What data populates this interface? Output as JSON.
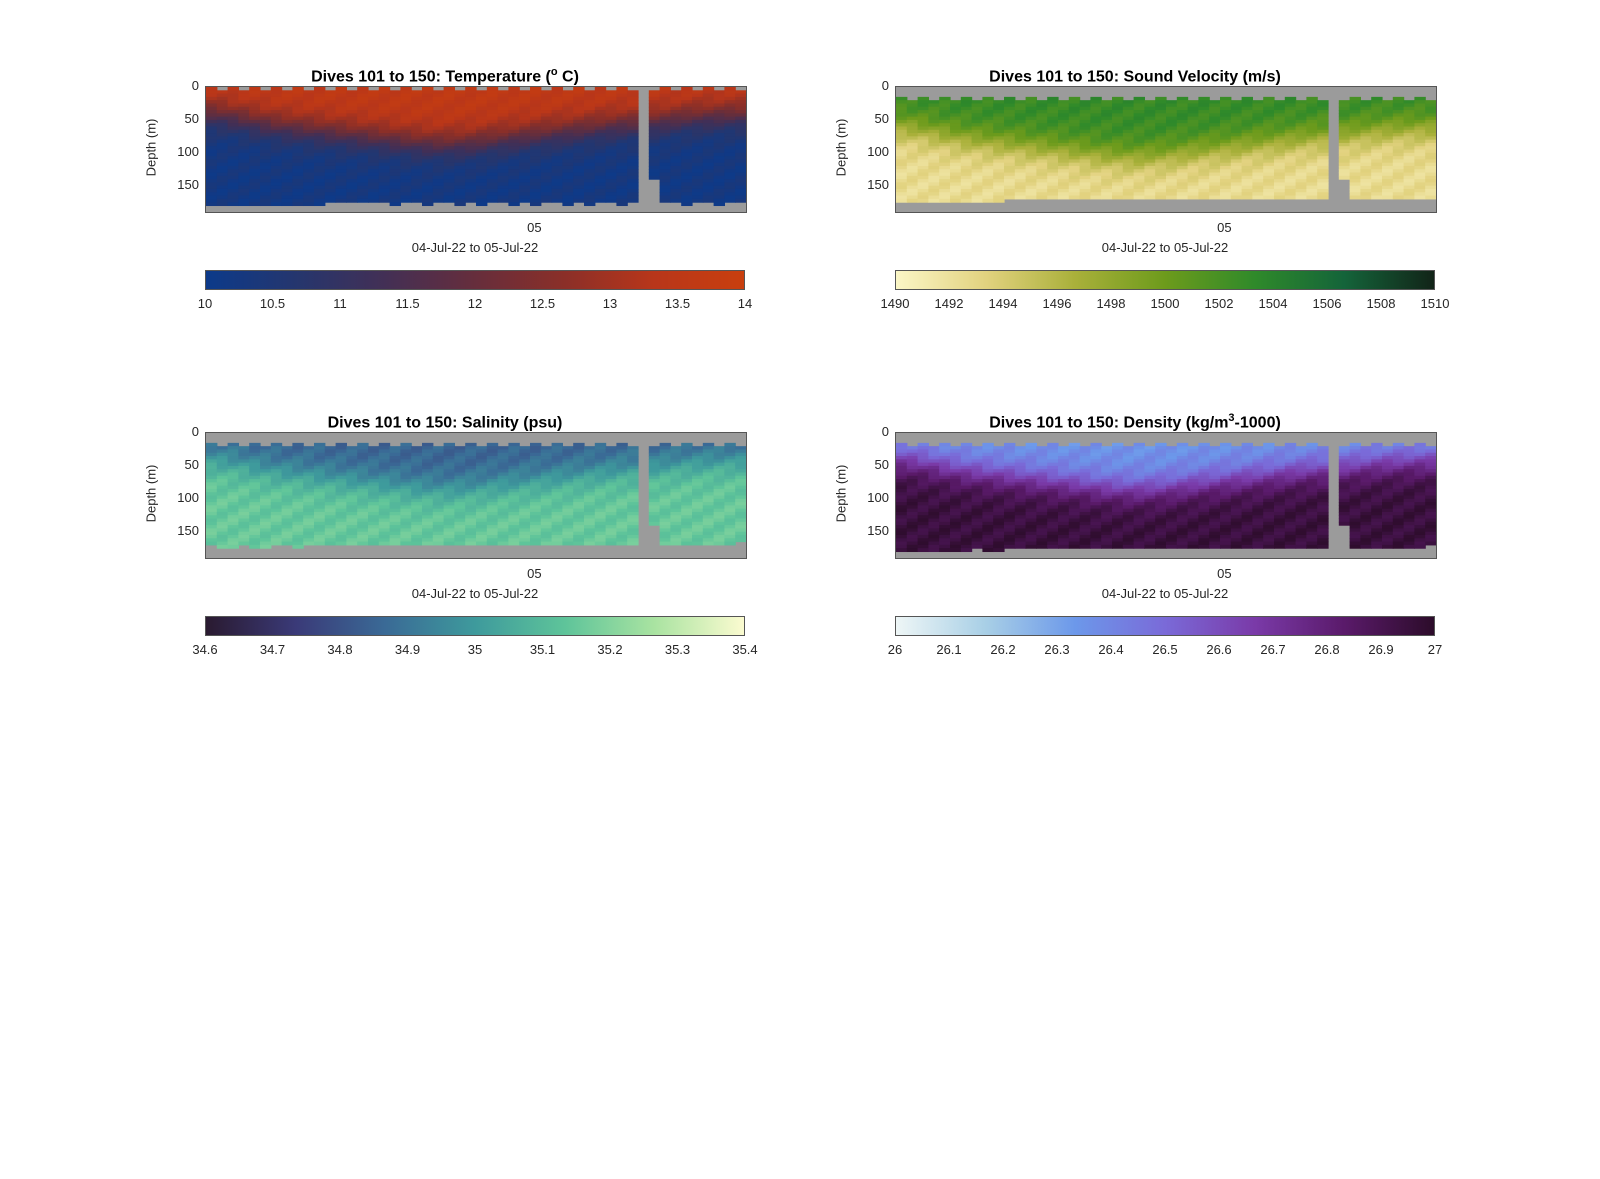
{
  "panels": [
    {
      "title": "Dives 101 to 150: Temperature (",
      "title_sup": "o",
      "title_after": " C)",
      "ylabel": "Depth (m)",
      "yticks": [
        "0",
        "50",
        "100",
        "150"
      ],
      "xtick": "05",
      "xlabel": "04-Jul-22 to 05-Jul-22",
      "cbar_ticks": [
        "10",
        "10.5",
        "11",
        "11.5",
        "12",
        "12.5",
        "13",
        "13.5",
        "14"
      ],
      "colors": [
        "#0c3a8a",
        "#25366e",
        "#432f55",
        "#662e3c",
        "#8b2f28",
        "#b8361a",
        "#c93f0e"
      ]
    },
    {
      "title": "Dives 101 to 150: Sound Velocity (m/s)",
      "title_sup": "",
      "title_after": "",
      "ylabel": "Depth (m)",
      "yticks": [
        "0",
        "50",
        "100",
        "150"
      ],
      "xtick": "05",
      "xlabel": "04-Jul-22 to 05-Jul-22",
      "cbar_ticks": [
        "1490",
        "1492",
        "1494",
        "1496",
        "1498",
        "1500",
        "1502",
        "1504",
        "1506",
        "1508",
        "1510"
      ],
      "colors": [
        "#fbf6c6",
        "#e2d27f",
        "#a9b03a",
        "#6d9b1c",
        "#2f8a2a",
        "#14643a",
        "#122418"
      ]
    },
    {
      "title": "Dives 101 to 150: Salinity (psu)",
      "title_sup": "",
      "title_after": "",
      "ylabel": "Depth (m)",
      "yticks": [
        "0",
        "50",
        "100",
        "150"
      ],
      "xtick": "05",
      "xlabel": "04-Jul-22 to 05-Jul-22",
      "cbar_ticks": [
        "34.6",
        "34.7",
        "34.8",
        "34.9",
        "35",
        "35.1",
        "35.2",
        "35.3",
        "35.4"
      ],
      "colors": [
        "#2a1a30",
        "#3a3a78",
        "#3a6a96",
        "#3e9a9c",
        "#5ec49a",
        "#a9e3a1",
        "#fbfbd0"
      ]
    },
    {
      "title": "Dives 101 to 150: Density (kg/m",
      "title_sup": "3",
      "title_after": "-1000)",
      "ylabel": "Depth (m)",
      "yticks": [
        "0",
        "50",
        "100",
        "150"
      ],
      "xtick": "05",
      "xlabel": "04-Jul-22 to 05-Jul-22",
      "cbar_ticks": [
        "26",
        "26.1",
        "26.2",
        "26.3",
        "26.4",
        "26.5",
        "26.6",
        "26.7",
        "26.8",
        "26.9",
        "27"
      ],
      "colors": [
        "#eef6f6",
        "#a8cfe6",
        "#6c98ea",
        "#7a6ad8",
        "#7a3aa8",
        "#5a1a6a",
        "#2c0c2a"
      ]
    }
  ],
  "chart_data": [
    {
      "type": "heatmap",
      "title": "Dives 101 to 150: Temperature (o C)",
      "xlabel": "04-Jul-22 to 05-Jul-22",
      "ylabel": "Depth (m)",
      "ylim": [
        0,
        190
      ],
      "y_reversed": true,
      "clim": [
        10,
        14
      ],
      "colorbar": "horizontal, below",
      "x_tick_labels": [
        "05"
      ],
      "columns": 50,
      "data_gap_after_column": 40,
      "thermocline_depth_m": [
        40,
        42,
        45,
        48,
        52,
        55,
        58,
        60,
        62,
        64,
        66,
        68,
        70,
        72,
        74,
        76,
        78,
        80,
        82,
        84,
        85,
        86,
        86,
        85,
        84,
        82,
        80,
        78,
        76,
        74,
        72,
        70,
        68,
        66,
        64,
        62,
        60,
        58,
        56,
        55,
        55,
        52,
        50,
        48,
        46,
        45,
        44,
        43,
        42,
        42
      ],
      "surface_value": 13.6,
      "deep_value": 10.2,
      "max_depth_m": [
        180,
        182,
        181,
        180,
        182,
        181,
        180,
        179,
        181,
        180,
        178,
        176,
        175,
        177,
        176,
        175,
        177,
        178,
        176,
        177,
        178,
        177,
        176,
        178,
        177,
        178,
        176,
        177,
        178,
        176,
        178,
        177,
        176,
        178,
        177,
        178,
        176,
        177,
        178,
        176,
        150,
        140,
        175,
        176,
        178,
        176,
        177,
        178,
        176,
        175
      ]
    },
    {
      "type": "heatmap",
      "title": "Dives 101 to 150: Sound Velocity (m/s)",
      "xlabel": "04-Jul-22 to 05-Jul-22",
      "ylabel": "Depth (m)",
      "ylim": [
        0,
        190
      ],
      "y_reversed": true,
      "clim": [
        1490,
        1510
      ],
      "colorbar": "horizontal, below",
      "x_tick_labels": [
        "05"
      ],
      "columns": 50,
      "data_gap_after_column": 40,
      "thermocline_depth_m": [
        60,
        62,
        65,
        68,
        72,
        75,
        78,
        80,
        82,
        84,
        86,
        88,
        90,
        92,
        94,
        96,
        98,
        100,
        102,
        104,
        105,
        106,
        106,
        105,
        104,
        102,
        100,
        98,
        96,
        94,
        92,
        90,
        88,
        86,
        84,
        82,
        80,
        78,
        76,
        75,
        75,
        72,
        70,
        68,
        66,
        65,
        64,
        63,
        62,
        62
      ],
      "surface_value": 1503,
      "deep_value": 1492.5,
      "top_gap_m": 15,
      "max_depth_m": [
        175,
        176,
        175,
        174,
        176,
        175,
        174,
        173,
        175,
        174,
        172,
        170,
        171,
        172,
        171,
        170,
        172,
        171,
        170,
        172,
        171,
        170,
        172,
        171,
        170,
        172,
        171,
        170,
        172,
        171,
        170,
        172,
        171,
        170,
        172,
        171,
        170,
        172,
        171,
        170,
        150,
        140,
        170,
        172,
        171,
        170,
        172,
        171,
        170,
        168
      ]
    },
    {
      "type": "heatmap",
      "title": "Dives 101 to 150: Salinity (psu)",
      "xlabel": "04-Jul-22 to 05-Jul-22",
      "ylabel": "Depth (m)",
      "ylim": [
        0,
        190
      ],
      "y_reversed": true,
      "clim": [
        34.6,
        35.4
      ],
      "colorbar": "horizontal, below",
      "x_tick_labels": [
        "05"
      ],
      "columns": 50,
      "data_gap_after_column": 40,
      "thermocline_depth_m": [
        40,
        42,
        45,
        48,
        52,
        55,
        58,
        60,
        62,
        64,
        66,
        68,
        70,
        72,
        74,
        76,
        78,
        80,
        82,
        84,
        85,
        86,
        86,
        85,
        84,
        82,
        80,
        78,
        76,
        74,
        72,
        70,
        68,
        66,
        64,
        62,
        60,
        58,
        56,
        55,
        55,
        52,
        50,
        48,
        46,
        45,
        44,
        43,
        42,
        42
      ],
      "surface_value": 34.85,
      "deep_value": 35.15,
      "top_gap_m": 15,
      "max_depth_m": [
        172,
        174,
        173,
        172,
        174,
        173,
        172,
        171,
        173,
        172,
        170,
        168,
        169,
        170,
        169,
        168,
        170,
        169,
        168,
        170,
        169,
        168,
        170,
        169,
        168,
        170,
        169,
        168,
        170,
        169,
        168,
        170,
        169,
        168,
        170,
        169,
        168,
        170,
        169,
        168,
        150,
        140,
        168,
        170,
        169,
        168,
        170,
        169,
        168,
        166
      ]
    },
    {
      "type": "heatmap",
      "title": "Dives 101 to 150: Density (kg/m3-1000)",
      "xlabel": "04-Jul-22 to 05-Jul-22",
      "ylabel": "Depth (m)",
      "ylim": [
        0,
        190
      ],
      "y_reversed": true,
      "clim": [
        26,
        27
      ],
      "colorbar": "horizontal, below",
      "x_tick_labels": [
        "05"
      ],
      "columns": 50,
      "data_gap_after_column": 40,
      "thermocline_depth_m": [
        40,
        42,
        45,
        48,
        52,
        55,
        58,
        60,
        62,
        64,
        66,
        68,
        70,
        72,
        74,
        76,
        78,
        80,
        82,
        84,
        85,
        86,
        86,
        85,
        84,
        82,
        80,
        78,
        76,
        74,
        72,
        70,
        68,
        66,
        64,
        62,
        60,
        58,
        56,
        55,
        55,
        52,
        50,
        48,
        46,
        45,
        44,
        43,
        42,
        42
      ],
      "surface_value": 26.35,
      "deep_value": 26.95,
      "top_gap_m": 15,
      "max_depth_m": [
        178,
        180,
        179,
        178,
        180,
        179,
        178,
        177,
        179,
        178,
        176,
        174,
        175,
        176,
        175,
        174,
        176,
        175,
        174,
        176,
        175,
        174,
        176,
        175,
        174,
        176,
        175,
        174,
        176,
        175,
        174,
        176,
        175,
        174,
        176,
        175,
        174,
        176,
        175,
        174,
        150,
        140,
        174,
        176,
        175,
        174,
        176,
        175,
        174,
        172
      ]
    }
  ]
}
